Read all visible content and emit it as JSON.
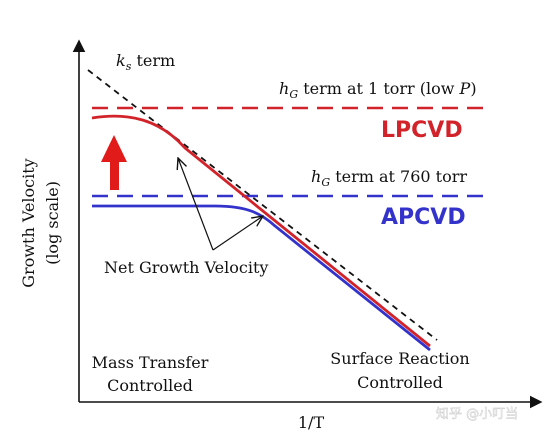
{
  "colors": {
    "red": "#d2232a",
    "blue": "#3333cc",
    "black": "#111111",
    "background": "#ffffff"
  },
  "axes": {
    "y_label_line1": "Growth Velocity",
    "y_label_line2": "(log scale)",
    "x_label": "1/T",
    "y_arrow_icon": "arrow-up-icon",
    "x_arrow_icon": "arrow-right-icon"
  },
  "labels": {
    "ks_term": {
      "symbol": "k",
      "sub": "s",
      "rest": " term"
    },
    "hg_low": {
      "symbol": "h",
      "sub": "G",
      "rest": " term at 1 torr (low ",
      "italic_tail": "P",
      "close": ")"
    },
    "hg_760": {
      "symbol": "h",
      "sub": "G",
      "rest": " term at 760 torr"
    },
    "lpcvd": "LPCVD",
    "apcvd": "APCVD",
    "net_growth": "Net Growth Velocity",
    "mass_transfer_line1": "Mass Transfer",
    "mass_transfer_line2": "Controlled",
    "surface_reaction_line1": "Surface Reaction",
    "surface_reaction_line2": "Controlled"
  },
  "watermark": "知乎 @小叮当",
  "icons": {
    "increase": "red-up-arrow-icon",
    "pointer": "pointer-arrow-icon"
  }
}
